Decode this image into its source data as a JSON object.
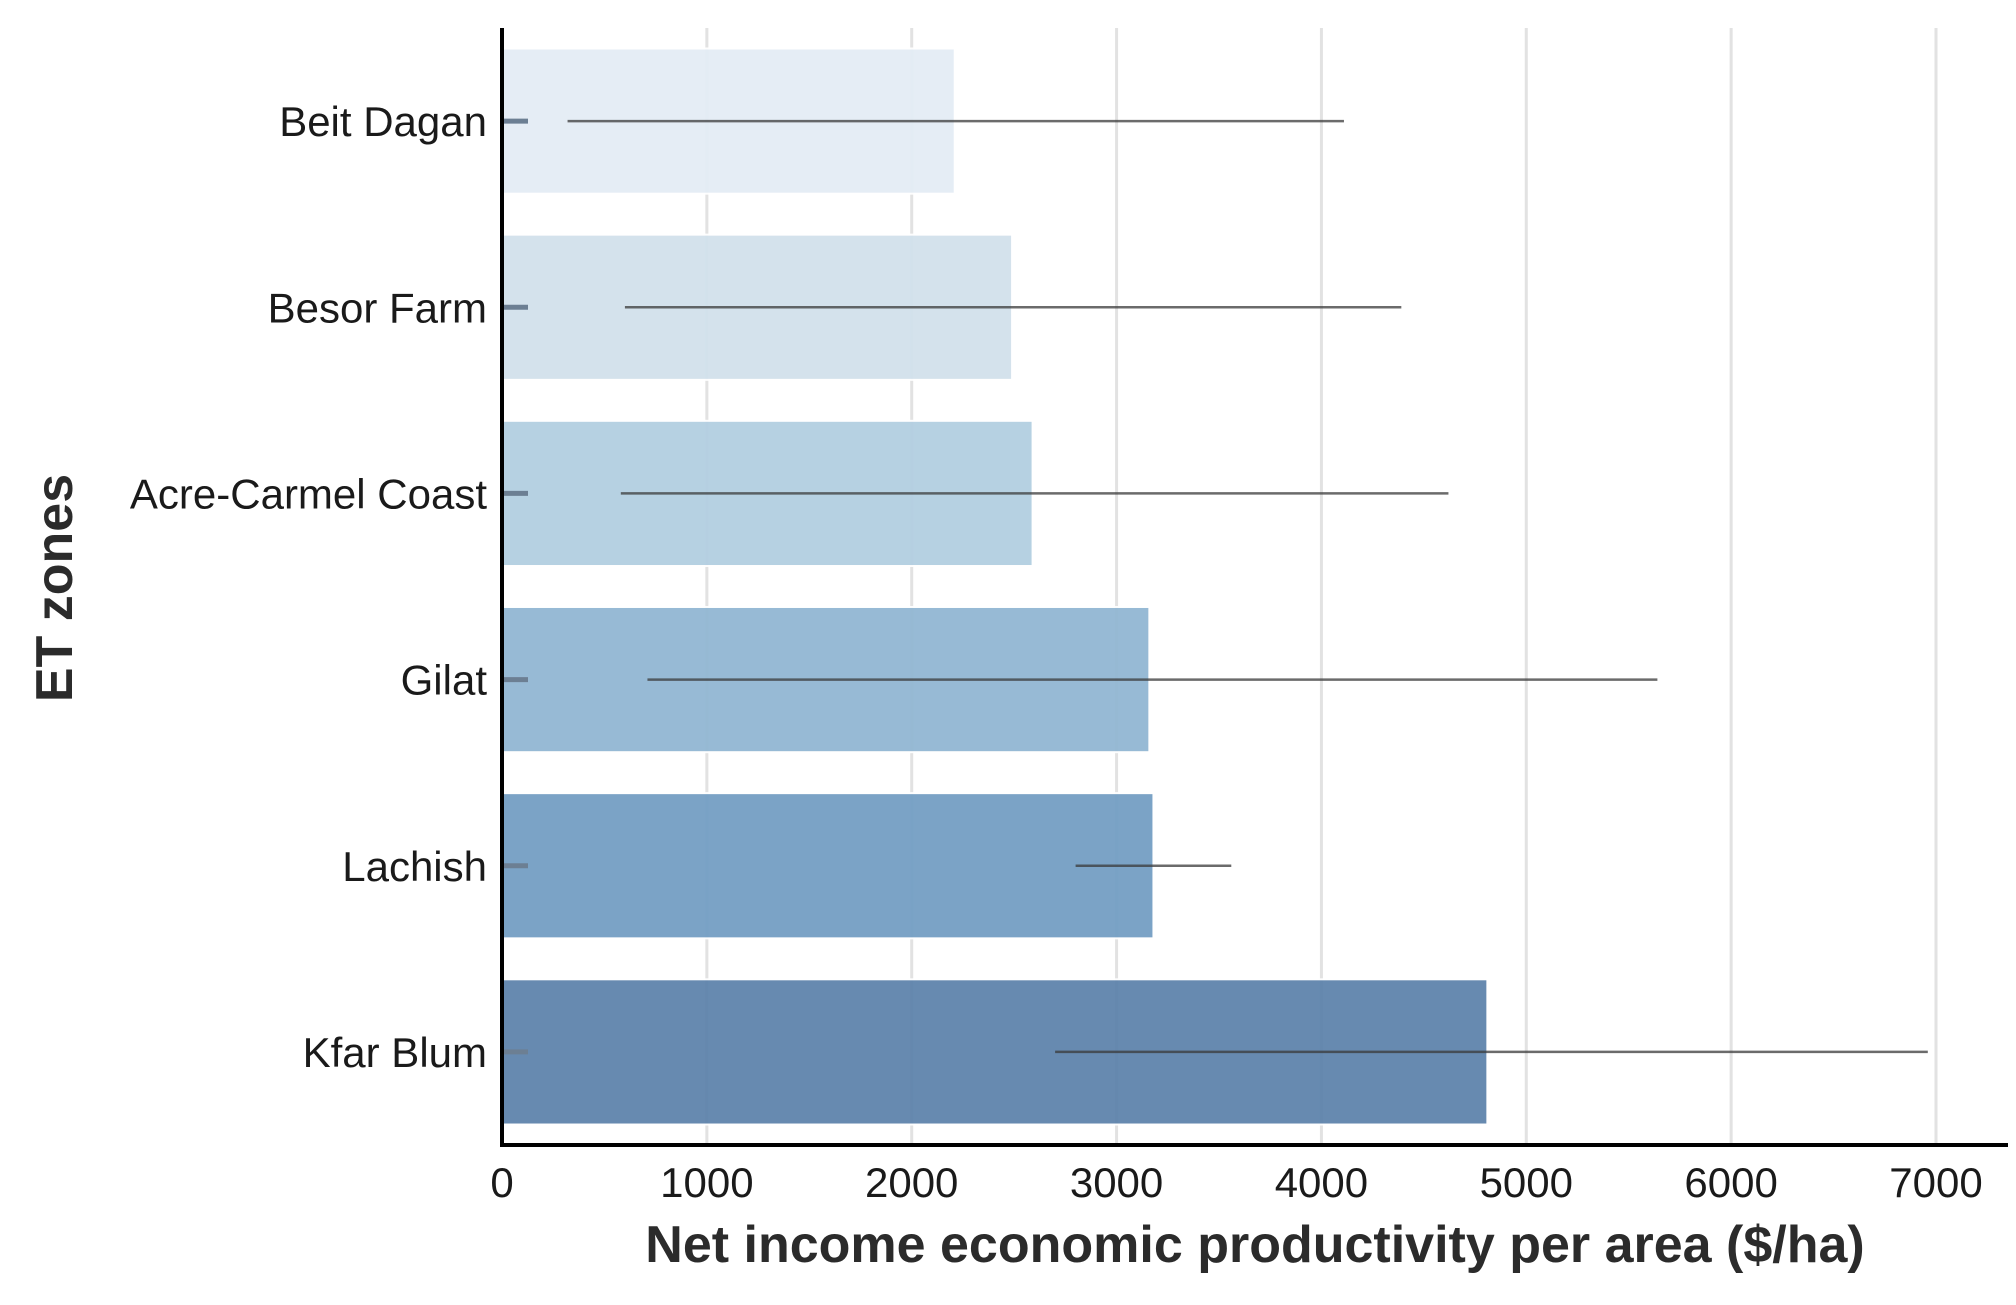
{
  "chart_data": {
    "type": "bar",
    "orientation": "horizontal",
    "title": "",
    "xlabel": "Net income economic productivity per area ($/ha)",
    "ylabel": "ET zones",
    "categories": [
      "Beit Dagan",
      "Besor Farm",
      "Acre-Carmel Coast",
      "Gilat",
      "Lachish",
      "Kfar Blum"
    ],
    "values": [
      2210,
      2490,
      2590,
      3160,
      3180,
      4810
    ],
    "error_ranges": [
      [
        320,
        4110
      ],
      [
        600,
        4390
      ],
      [
        580,
        4620
      ],
      [
        710,
        5640
      ],
      [
        2800,
        3560
      ],
      [
        2700,
        6960
      ]
    ],
    "bar_colors": [
      "#e4edf5",
      "#d2e1ec",
      "#b3cfe1",
      "#92b7d3",
      "#749fc4",
      "#5f84ac"
    ],
    "xlim": [
      0,
      7300
    ],
    "xticks": [
      "0",
      "1000",
      "2000",
      "3000",
      "4000",
      "5000",
      "6000",
      "7000"
    ],
    "xtick_values": [
      0,
      1000,
      2000,
      3000,
      4000,
      5000,
      6000,
      7000
    ],
    "grid": "vertical"
  }
}
